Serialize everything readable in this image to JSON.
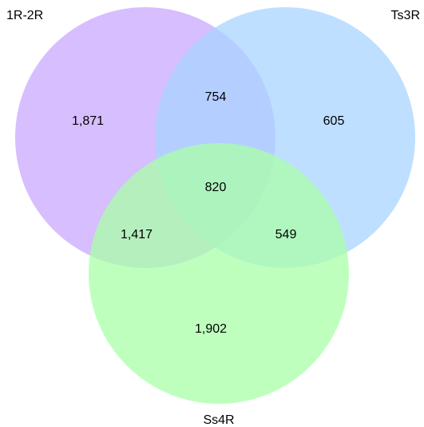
{
  "venn": {
    "sets": [
      {
        "key": "A",
        "label": "1R-2R",
        "color": "#c8a8ff"
      },
      {
        "key": "B",
        "label": "Ts3R",
        "color": "#a8d4ff"
      },
      {
        "key": "C",
        "label": "Ss4R",
        "color": "#aaffa8"
      }
    ],
    "regions": {
      "A_only": "1,871",
      "B_only": "605",
      "C_only": "1,902",
      "AB_only": "754",
      "AC_only": "1,417",
      "BC_only": "549",
      "ABC": "820"
    }
  }
}
